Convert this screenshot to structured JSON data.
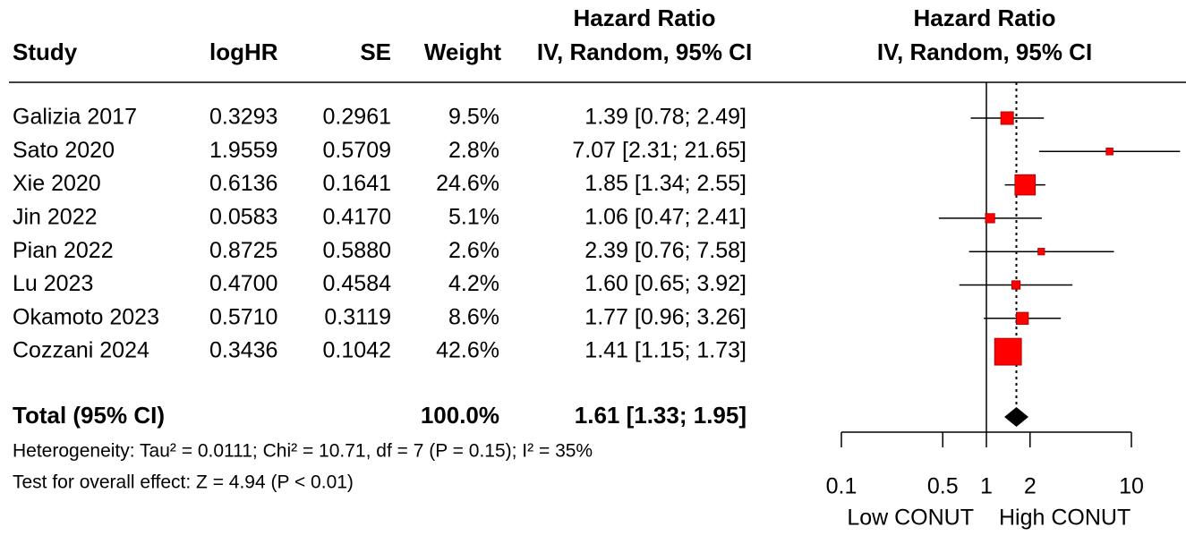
{
  "chart_data": {
    "type": "forest",
    "headers": {
      "study": "Study",
      "loghr": "logHR",
      "se": "SE",
      "weight": "Weight",
      "effect": [
        "Hazard Ratio",
        "IV, Random, 95% CI"
      ],
      "plot": [
        "Hazard Ratio",
        "IV, Random, 95% CI"
      ]
    },
    "studies": [
      "Galizia 2017",
      "Sato 2020",
      "Xie 2020",
      "Jin 2022",
      "Pian 2022",
      "Lu 2023",
      "Okamoto 2023",
      "Cozzani 2024"
    ],
    "loghr": [
      "0.3293",
      "1.9559",
      "0.6136",
      "0.0583",
      "0.8725",
      "0.4700",
      "0.5710",
      "0.3436"
    ],
    "se": [
      "0.2961",
      "0.5709",
      "0.1641",
      "0.4170",
      "0.5880",
      "0.4584",
      "0.3119",
      "0.1042"
    ],
    "weights": [
      9.5,
      2.8,
      24.6,
      5.1,
      2.6,
      4.2,
      8.6,
      42.6
    ],
    "weight_labels": [
      "9.5%",
      "2.8%",
      "24.6%",
      "5.1%",
      "2.6%",
      "4.2%",
      "8.6%",
      "42.6%"
    ],
    "hr": [
      1.39,
      7.07,
      1.85,
      1.06,
      2.39,
      1.6,
      1.77,
      1.41
    ],
    "lower": [
      0.78,
      2.31,
      1.34,
      0.47,
      0.76,
      0.65,
      0.96,
      1.15
    ],
    "upper": [
      2.49,
      21.65,
      2.55,
      2.41,
      7.58,
      3.92,
      3.26,
      1.73
    ],
    "ci_labels": [
      "1.39 [0.78;  2.49]",
      "7.07 [2.31; 21.65]",
      "1.85 [1.34;  2.55]",
      "1.06 [0.47;  2.41]",
      "2.39 [0.76;  7.58]",
      "1.60 [0.65;  3.92]",
      "1.77 [0.96;  3.26]",
      "1.41 [1.15;  1.73]"
    ],
    "total": {
      "label": "Total (95% CI)",
      "weight": 100.0,
      "weight_label": "100.0%",
      "hr": 1.61,
      "lower": 1.33,
      "upper": 1.95,
      "ci_label": "1.61 [1.33;  1.95]"
    },
    "heterogeneity": "Heterogeneity: Tau² = 0.0111; Chi² = 10.71, df = 7 (P = 0.15); I² = 35%",
    "overall_effect": "Test for overall effect: Z = 4.94 (P < 0.01)",
    "xlim": [
      0.1,
      10
    ],
    "xticks": [
      0.1,
      0.5,
      1,
      2,
      10
    ],
    "log_x": true,
    "null_line": 1,
    "x_labels": [
      "Low CONUT",
      "High CONUT"
    ],
    "color": "#ff0000"
  }
}
